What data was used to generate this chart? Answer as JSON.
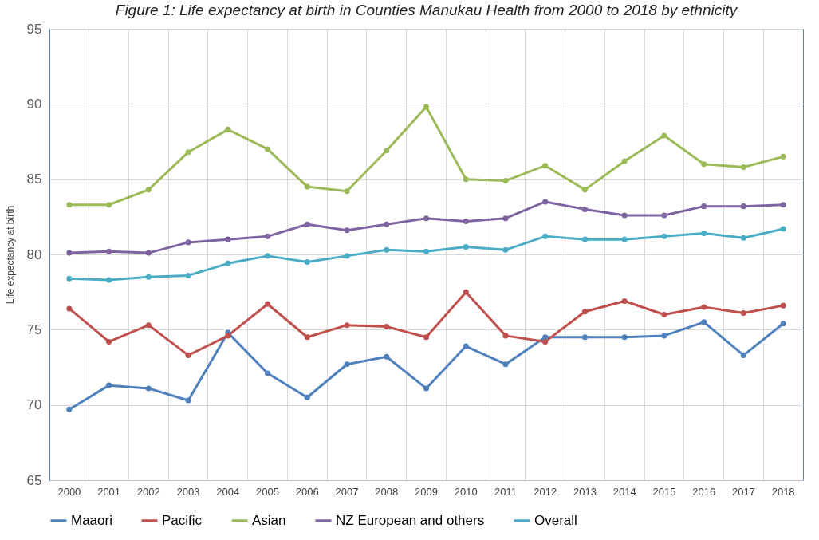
{
  "chart_data": {
    "type": "line",
    "title": "Figure 1: Life expectancy at birth in Counties Manukau Health from 2000 to 2018 by ethnicity",
    "ylabel": "Life expectancy at birth",
    "categories": [
      "2000",
      "2001",
      "2002",
      "2003",
      "2004",
      "2005",
      "2006",
      "2007",
      "2008",
      "2009",
      "2010",
      "2011",
      "2012",
      "2013",
      "2014",
      "2015",
      "2016",
      "2017",
      "2018"
    ],
    "series": [
      {
        "name": "Maaori",
        "color": "#4f81bd",
        "values": [
          69.7,
          71.3,
          71.1,
          70.3,
          74.8,
          72.1,
          70.5,
          72.7,
          73.2,
          71.1,
          73.9,
          72.7,
          74.5,
          74.5,
          74.5,
          74.6,
          75.5,
          73.3,
          75.4
        ]
      },
      {
        "name": "Pacific",
        "color": "#c0504d",
        "values": [
          76.4,
          74.2,
          75.3,
          73.3,
          74.6,
          76.7,
          74.5,
          75.3,
          75.2,
          74.5,
          77.5,
          74.6,
          74.2,
          76.2,
          76.9,
          76.0,
          76.5,
          76.1,
          76.6
        ]
      },
      {
        "name": "Asian",
        "color": "#9bbb59",
        "values": [
          83.3,
          83.3,
          84.3,
          86.8,
          88.3,
          87.0,
          84.5,
          84.2,
          86.9,
          89.8,
          85.0,
          84.9,
          85.9,
          84.3,
          86.2,
          87.9,
          86.0,
          85.8,
          86.5
        ]
      },
      {
        "name": "NZ European and others",
        "color": "#8064a2",
        "values": [
          80.1,
          80.2,
          80.1,
          80.8,
          81.0,
          81.2,
          82.0,
          81.6,
          82.0,
          82.4,
          82.2,
          82.4,
          83.5,
          83.0,
          82.6,
          82.6,
          83.2,
          83.2,
          83.3
        ]
      },
      {
        "name": "Overall",
        "color": "#4bacc6",
        "values": [
          78.4,
          78.3,
          78.5,
          78.6,
          79.4,
          79.9,
          79.5,
          79.9,
          80.3,
          80.2,
          80.5,
          80.3,
          81.2,
          81.0,
          81.0,
          81.2,
          81.4,
          81.1,
          81.7
        ]
      }
    ],
    "ylim": [
      65,
      95
    ],
    "yticks": [
      65,
      70,
      75,
      80,
      85,
      90,
      95
    ],
    "grid": true,
    "legend": "bottom",
    "marker": "circle",
    "line_style": "solid"
  }
}
